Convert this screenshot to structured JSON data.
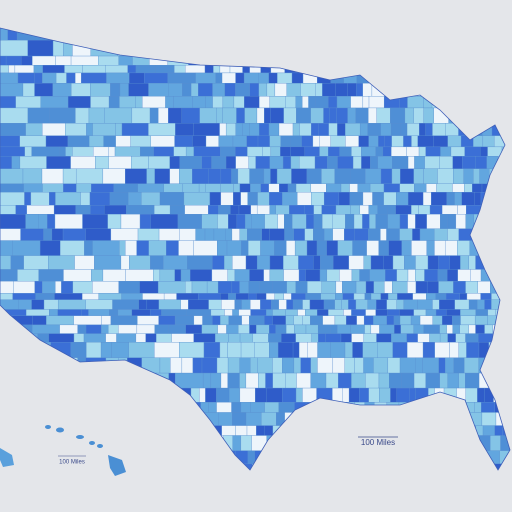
{
  "scale_bars": [
    {
      "label": "100 Miles"
    },
    {
      "label": "100 Miles"
    }
  ]
}
